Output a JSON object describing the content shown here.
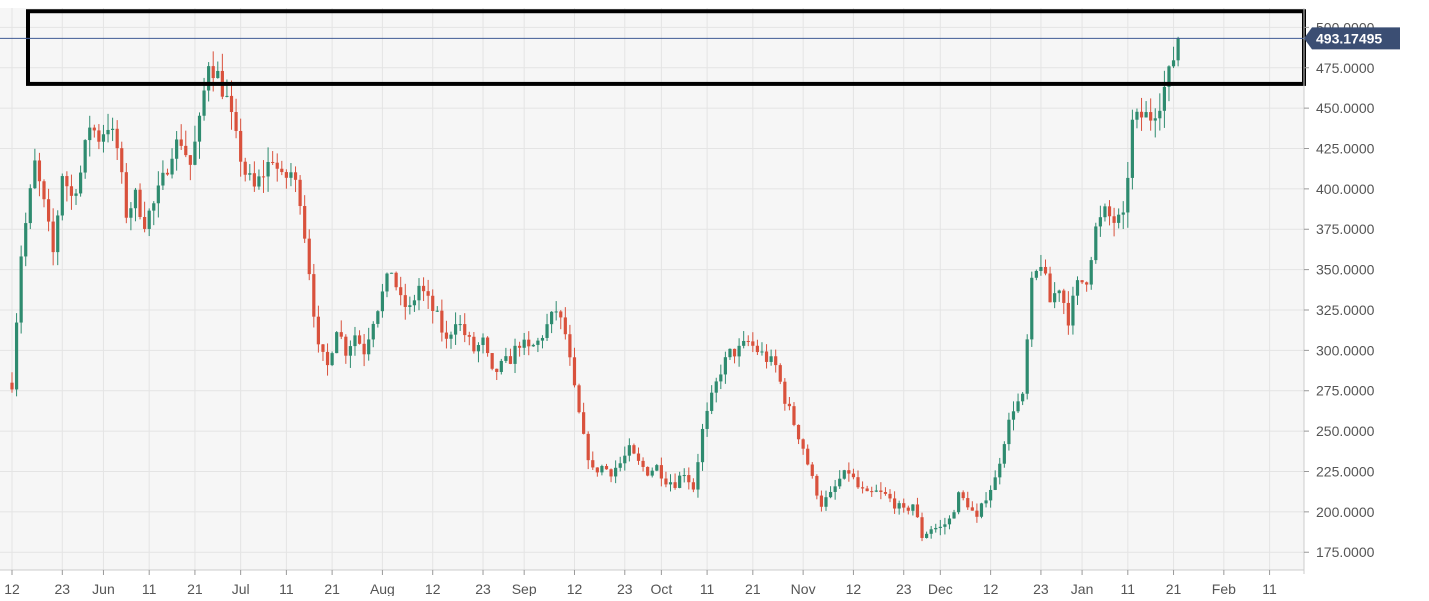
{
  "colors": {
    "plot_background": "#f6f6f6",
    "grid": "#e4e4e4",
    "up_candle": "#2e8b6f",
    "down_candle": "#d9513c",
    "axis_text": "#555555",
    "price_line": "#3f5a94",
    "price_tag_bg": "#3b4e73",
    "price_tag_text": "#ffffff",
    "highlight_box": "#000000"
  },
  "chart_data": {
    "type": "candlestick",
    "title": "",
    "xlabel": "",
    "ylabel": "",
    "ylim": [
      164,
      512
    ],
    "y_ticks": [
      "175.0000",
      "200.0000",
      "225.0000",
      "250.0000",
      "275.0000",
      "300.0000",
      "325.0000",
      "350.0000",
      "375.0000",
      "400.0000",
      "425.0000",
      "450.0000",
      "475.0000",
      "500.0000"
    ],
    "y_tick_values": [
      175,
      200,
      225,
      250,
      275,
      300,
      325,
      350,
      375,
      400,
      425,
      450,
      475,
      500
    ],
    "x_range": [
      0,
      274
    ],
    "x_ticks": [
      {
        "label": "12",
        "day": 0
      },
      {
        "label": "23",
        "day": 11
      },
      {
        "label": "Jun",
        "day": 20
      },
      {
        "label": "11",
        "day": 30
      },
      {
        "label": "21",
        "day": 40
      },
      {
        "label": "Jul",
        "day": 50
      },
      {
        "label": "11",
        "day": 60
      },
      {
        "label": "21",
        "day": 70
      },
      {
        "label": "Aug",
        "day": 81
      },
      {
        "label": "12",
        "day": 92
      },
      {
        "label": "23",
        "day": 103
      },
      {
        "label": "Sep",
        "day": 112
      },
      {
        "label": "12",
        "day": 123
      },
      {
        "label": "23",
        "day": 134
      },
      {
        "label": "Oct",
        "day": 142
      },
      {
        "label": "11",
        "day": 152
      },
      {
        "label": "21",
        "day": 162
      },
      {
        "label": "Nov",
        "day": 173
      },
      {
        "label": "12",
        "day": 184
      },
      {
        "label": "23",
        "day": 195
      },
      {
        "label": "Dec",
        "day": 203
      },
      {
        "label": "12",
        "day": 214
      },
      {
        "label": "23",
        "day": 225
      },
      {
        "label": "Jan",
        "day": 234
      },
      {
        "label": "11",
        "day": 244
      },
      {
        "label": "21",
        "day": 254
      },
      {
        "label": "Feb",
        "day": 265
      },
      {
        "label": "11",
        "day": 275
      }
    ],
    "current_price": 493.17495,
    "current_price_label": "493.17495",
    "highlight_zone": [
      465,
      510
    ],
    "close_anchors": [
      [
        0,
        280
      ],
      [
        2,
        360
      ],
      [
        5,
        415
      ],
      [
        7,
        390
      ],
      [
        9,
        360
      ],
      [
        11,
        410
      ],
      [
        13,
        395
      ],
      [
        15,
        410
      ],
      [
        17,
        440
      ],
      [
        19,
        432
      ],
      [
        21,
        440
      ],
      [
        23,
        425
      ],
      [
        25,
        385
      ],
      [
        27,
        395
      ],
      [
        29,
        380
      ],
      [
        31,
        390
      ],
      [
        33,
        405
      ],
      [
        35,
        425
      ],
      [
        37,
        430
      ],
      [
        39,
        415
      ],
      [
        41,
        440
      ],
      [
        43,
        480
      ],
      [
        45,
        470
      ],
      [
        47,
        455
      ],
      [
        49,
        430
      ],
      [
        51,
        410
      ],
      [
        53,
        400
      ],
      [
        55,
        410
      ],
      [
        57,
        420
      ],
      [
        59,
        405
      ],
      [
        61,
        410
      ],
      [
        63,
        395
      ],
      [
        65,
        350
      ],
      [
        67,
        300
      ],
      [
        69,
        290
      ],
      [
        71,
        315
      ],
      [
        73,
        300
      ],
      [
        75,
        310
      ],
      [
        77,
        300
      ],
      [
        79,
        320
      ],
      [
        81,
        335
      ],
      [
        83,
        350
      ],
      [
        85,
        330
      ],
      [
        87,
        325
      ],
      [
        89,
        340
      ],
      [
        91,
        330
      ],
      [
        93,
        320
      ],
      [
        95,
        305
      ],
      [
        97,
        320
      ],
      [
        99,
        310
      ],
      [
        101,
        300
      ],
      [
        103,
        305
      ],
      [
        105,
        285
      ],
      [
        107,
        290
      ],
      [
        109,
        295
      ],
      [
        111,
        305
      ],
      [
        113,
        300
      ],
      [
        115,
        305
      ],
      [
        117,
        315
      ],
      [
        119,
        325
      ],
      [
        121,
        310
      ],
      [
        123,
        275
      ],
      [
        125,
        245
      ],
      [
        127,
        225
      ],
      [
        129,
        228
      ],
      [
        131,
        225
      ],
      [
        133,
        230
      ],
      [
        135,
        238
      ],
      [
        137,
        230
      ],
      [
        139,
        225
      ],
      [
        141,
        228
      ],
      [
        143,
        220
      ],
      [
        145,
        218
      ],
      [
        147,
        225
      ],
      [
        149,
        215
      ],
      [
        151,
        250
      ],
      [
        153,
        270
      ],
      [
        155,
        288
      ],
      [
        157,
        298
      ],
      [
        159,
        300
      ],
      [
        161,
        305
      ],
      [
        163,
        300
      ],
      [
        165,
        295
      ],
      [
        167,
        290
      ],
      [
        169,
        270
      ],
      [
        171,
        255
      ],
      [
        173,
        240
      ],
      [
        175,
        220
      ],
      [
        177,
        205
      ],
      [
        179,
        210
      ],
      [
        181,
        220
      ],
      [
        183,
        225
      ],
      [
        185,
        215
      ],
      [
        187,
        210
      ],
      [
        189,
        212
      ],
      [
        191,
        210
      ],
      [
        193,
        205
      ],
      [
        195,
        200
      ],
      [
        197,
        205
      ],
      [
        199,
        185
      ],
      [
        201,
        190
      ],
      [
        203,
        190
      ],
      [
        205,
        195
      ],
      [
        207,
        210
      ],
      [
        209,
        205
      ],
      [
        211,
        195
      ],
      [
        213,
        210
      ],
      [
        215,
        220
      ],
      [
        217,
        245
      ],
      [
        219,
        265
      ],
      [
        221,
        270
      ],
      [
        223,
        340
      ],
      [
        225,
        355
      ],
      [
        227,
        330
      ],
      [
        229,
        340
      ],
      [
        231,
        320
      ],
      [
        233,
        340
      ],
      [
        235,
        345
      ],
      [
        237,
        375
      ],
      [
        239,
        385
      ],
      [
        241,
        380
      ],
      [
        243,
        380
      ],
      [
        245,
        440
      ],
      [
        247,
        445
      ],
      [
        249,
        445
      ],
      [
        251,
        455
      ],
      [
        253,
        470
      ],
      [
        255,
        493.17
      ]
    ]
  }
}
